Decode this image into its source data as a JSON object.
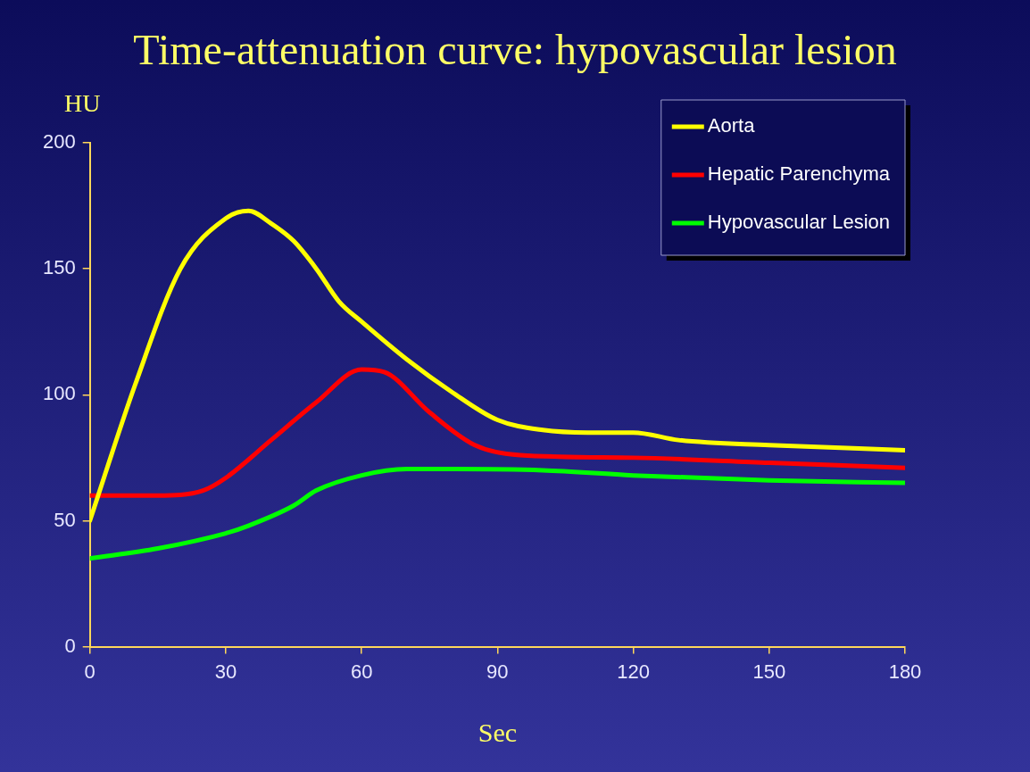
{
  "chart_data": {
    "type": "line",
    "title": "Time-attenuation curve: hypovascular lesion",
    "xlabel": "Sec",
    "ylabel": "HU",
    "xlim": [
      0,
      180
    ],
    "xticks": [
      0,
      30,
      60,
      90,
      120,
      150,
      180
    ],
    "ylim": [
      0,
      200
    ],
    "yticks": [
      0,
      50,
      100,
      150,
      200
    ],
    "grid": false,
    "legend": "top right",
    "marker": "none",
    "line_style": "solid",
    "series": [
      {
        "name": "Aorta",
        "color": "#ffff00",
        "x": [
          0,
          10,
          20,
          30,
          35,
          40,
          45,
          50,
          55,
          60,
          70,
          80,
          90,
          100,
          110,
          120,
          130,
          150,
          180
        ],
        "values": [
          50,
          104,
          150,
          170,
          173,
          168,
          161,
          150,
          137,
          129,
          114,
          101,
          90,
          86,
          85,
          85,
          82,
          80,
          78
        ]
      },
      {
        "name": "Hepatic Parenchyma",
        "color": "#ff0000",
        "x": [
          0,
          15,
          25,
          30,
          40,
          50,
          60,
          65,
          75,
          85,
          95,
          120,
          150,
          180
        ],
        "values": [
          60,
          60,
          62,
          67,
          82,
          97,
          110,
          109,
          93,
          80,
          76,
          75,
          73,
          71
        ]
      },
      {
        "name": "Hypovascular Lesion",
        "color": "#00ff00",
        "x": [
          0,
          15,
          30,
          35,
          45,
          50,
          60,
          70,
          80,
          100,
          120,
          150,
          180
        ],
        "values": [
          35,
          39,
          45,
          48,
          56,
          62,
          68,
          70.5,
          70.5,
          70,
          68,
          66,
          65
        ]
      }
    ]
  }
}
